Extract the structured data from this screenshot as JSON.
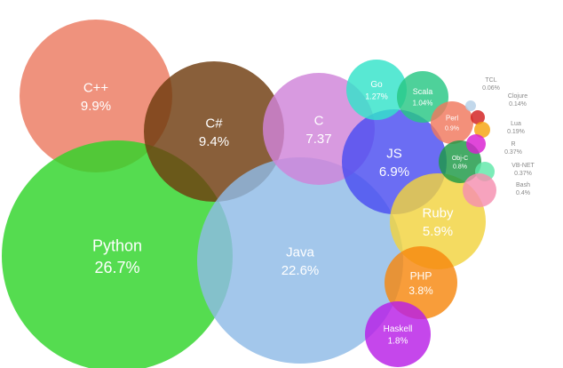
{
  "chart_data": {
    "type": "bubble",
    "title": "",
    "items": [
      {
        "name": "Python",
        "label": "26.7%",
        "value": 26.7,
        "color": "#2fd42a"
      },
      {
        "name": "Java",
        "label": "22.6%",
        "value": 22.6,
        "color": "#8fbbe6"
      },
      {
        "name": "C++",
        "label": "9.9%",
        "value": 9.9,
        "color": "#eb7a60"
      },
      {
        "name": "C#",
        "label": "9.4%",
        "value": 9.4,
        "color": "#6f3c0f"
      },
      {
        "name": "C",
        "label": "7.37",
        "value": 7.37,
        "color": "#cf84d9"
      },
      {
        "name": "JS",
        "label": "6.9%",
        "value": 6.9,
        "color": "#4a4df0"
      },
      {
        "name": "Ruby",
        "label": "5.9%",
        "value": 5.9,
        "color": "#f2d33e"
      },
      {
        "name": "PHP",
        "label": "3.8%",
        "value": 3.8,
        "color": "#f7880f"
      },
      {
        "name": "Haskell",
        "label": "1.8%",
        "value": 1.8,
        "color": "#b81ee6"
      },
      {
        "name": "Go",
        "label": "1.27%",
        "value": 1.27,
        "color": "#33e3c9"
      },
      {
        "name": "Scala",
        "label": "1.04%",
        "value": 1.04,
        "color": "#27c784"
      },
      {
        "name": "Perl",
        "label": "0.9%",
        "value": 0.9,
        "color": "#f0775d"
      },
      {
        "name": "Obj-C",
        "label": "0.8%",
        "value": 0.8,
        "color": "#1c9945"
      },
      {
        "name": "TCL",
        "label": "0.06%",
        "value": 0.06,
        "color": "#b5cfe6"
      },
      {
        "name": "Clojure",
        "label": "0.14%",
        "value": 0.14,
        "color": "#d21f1f"
      },
      {
        "name": "Lua",
        "label": "0.19%",
        "value": 0.19,
        "color": "#f5a30f"
      },
      {
        "name": "R",
        "label": "0.37%",
        "value": 0.37,
        "color": "#d91fd1"
      },
      {
        "name": "VB-NET",
        "label": "0.37%",
        "value": 0.37,
        "color": "#5fe8a8"
      },
      {
        "name": "Bash",
        "label": "0.4%",
        "value": 0.4,
        "color": "#f58fb0"
      }
    ]
  }
}
